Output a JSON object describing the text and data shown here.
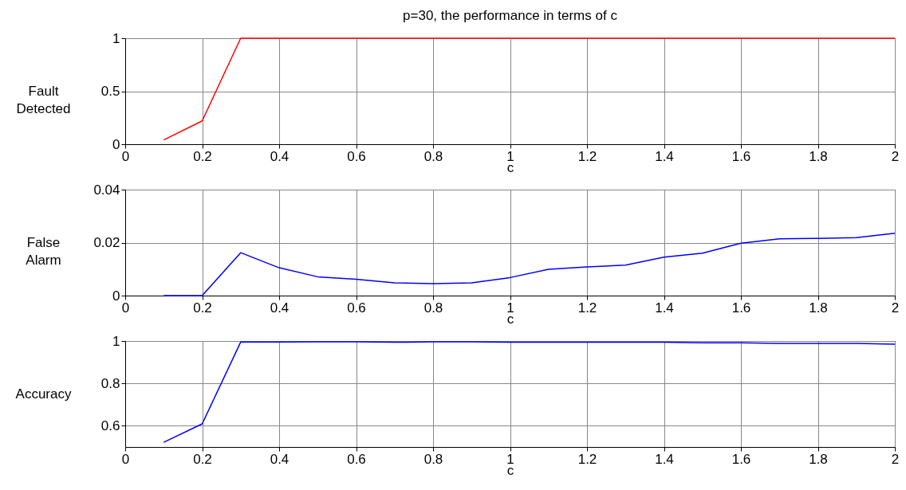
{
  "chart_data": [
    {
      "type": "line",
      "title": "p=30, the performance in terms of c",
      "xlabel": "c",
      "ylabel": "Fault Detected",
      "x": [
        0.1,
        0.2,
        0.3,
        0.4,
        0.5,
        0.6,
        0.7,
        0.8,
        0.9,
        1.0,
        1.1,
        1.2,
        1.3,
        1.4,
        1.5,
        1.6,
        1.7,
        1.8,
        1.9,
        2.0
      ],
      "series": [
        {
          "color": "#ff0000",
          "values": [
            0.04,
            0.22,
            1,
            1,
            1,
            1,
            1,
            1,
            1,
            1,
            1,
            1,
            1,
            1,
            1,
            1,
            1,
            1,
            1,
            1
          ]
        }
      ],
      "xlim": [
        0,
        2
      ],
      "xticks": [
        0,
        0.2,
        0.4,
        0.6,
        0.8,
        1,
        1.2,
        1.4,
        1.6,
        1.8,
        2
      ],
      "ylim": [
        0,
        1
      ],
      "yticks": [
        0,
        0.5,
        1
      ],
      "grid": true
    },
    {
      "type": "line",
      "xlabel": "c",
      "ylabel": "False Alarm",
      "x": [
        0.1,
        0.2,
        0.3,
        0.4,
        0.5,
        0.6,
        0.7,
        0.8,
        0.9,
        1.0,
        1.1,
        1.2,
        1.3,
        1.4,
        1.5,
        1.6,
        1.7,
        1.8,
        1.9,
        2.0
      ],
      "series": [
        {
          "color": "#0000ff",
          "values": [
            0,
            0,
            0.0162,
            0.0105,
            0.0071,
            0.0062,
            0.0048,
            0.0045,
            0.0048,
            0.0068,
            0.0099,
            0.0108,
            0.0115,
            0.0145,
            0.016,
            0.0198,
            0.0214,
            0.0216,
            0.0219,
            0.0235
          ]
        }
      ],
      "xlim": [
        0,
        2
      ],
      "xticks": [
        0,
        0.2,
        0.4,
        0.6,
        0.8,
        1,
        1.2,
        1.4,
        1.6,
        1.8,
        2
      ],
      "ylim": [
        0,
        0.04
      ],
      "yticks": [
        0,
        0.02,
        0.04
      ],
      "grid": true
    },
    {
      "type": "line",
      "xlabel": "c",
      "ylabel": "Accuracy",
      "x": [
        0.1,
        0.2,
        0.3,
        0.4,
        0.5,
        0.6,
        0.7,
        0.8,
        0.9,
        1.0,
        1.1,
        1.2,
        1.3,
        1.4,
        1.5,
        1.6,
        1.7,
        1.8,
        1.9,
        2.0
      ],
      "series": [
        {
          "color": "#0000ff",
          "values": [
            0.522,
            0.609,
            0.995,
            0.995,
            0.996,
            0.996,
            0.994,
            0.996,
            0.996,
            0.994,
            0.994,
            0.994,
            0.994,
            0.994,
            0.992,
            0.992,
            0.989,
            0.989,
            0.989,
            0.985
          ]
        }
      ],
      "xlim": [
        0,
        2
      ],
      "xticks": [
        0,
        0.2,
        0.4,
        0.6,
        0.8,
        1,
        1.2,
        1.4,
        1.6,
        1.8,
        2
      ],
      "ylim": [
        0.5,
        1
      ],
      "yticks": [
        0.6,
        0.8,
        1
      ],
      "grid": true
    }
  ]
}
